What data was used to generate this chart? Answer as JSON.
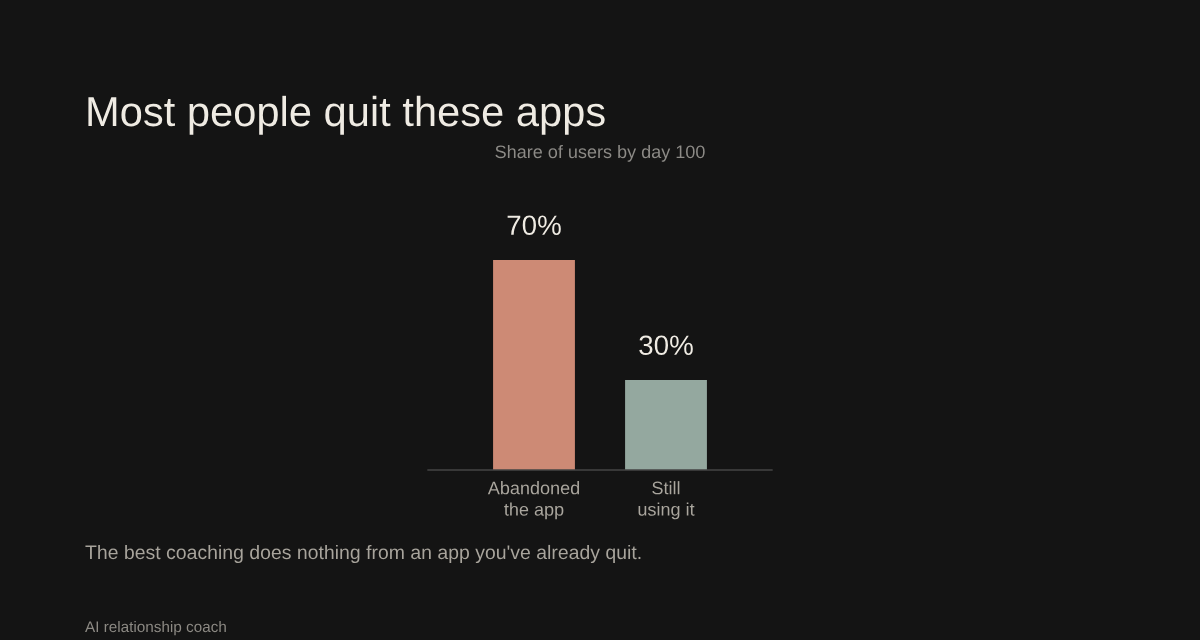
{
  "chart_data": {
    "type": "bar",
    "title": "Most people quit these apps",
    "subtitle": "Share of users by day 100",
    "categories": [
      "Abandoned\nthe app",
      "Still\nusing it"
    ],
    "values": [
      70,
      30
    ],
    "colors": [
      "#cd8a75",
      "#94a89f"
    ],
    "value_labels": [
      "70%",
      "30%"
    ],
    "annotations": [
      "The best coaching does nothing from an app you've already quit.",
      "AI relationship coach"
    ],
    "tick_labels": "x"
  }
}
